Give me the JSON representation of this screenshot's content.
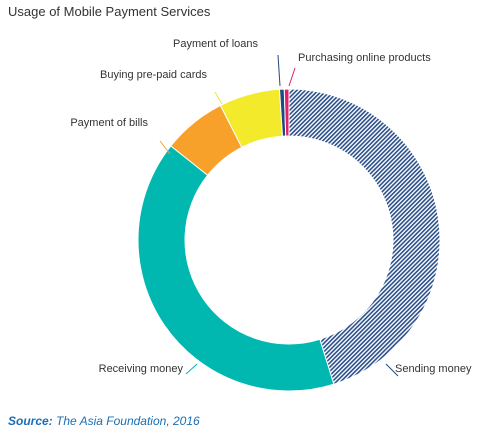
{
  "chart_data": {
    "type": "pie",
    "title": "Usage of Mobile Payment Services",
    "categories": [
      "Sending money",
      "Receiving money",
      "Payment of bills",
      "Buying pre-paid cards",
      "Payment of loans",
      "Purchasing online products"
    ],
    "values": [
      45.2,
      40.5,
      6.8,
      6.5,
      0.5,
      0.5
    ],
    "colors": [
      "#2a4f8a",
      "#00b8b0",
      "#f7a02a",
      "#f2ea2a",
      "#1f4a80",
      "#e0206a"
    ],
    "label_line_colors": [
      "#1f4a80",
      "#00b8b0",
      "#f7a02a",
      "#f2ea2a",
      "#1f4a80",
      "#e0206a"
    ],
    "pattern": {
      "Sending money": "diagonal-hatch"
    },
    "legend": "none (callout labels)"
  },
  "source": {
    "prefix": "Source:",
    "text": " The Asia Foundation, 2016"
  }
}
